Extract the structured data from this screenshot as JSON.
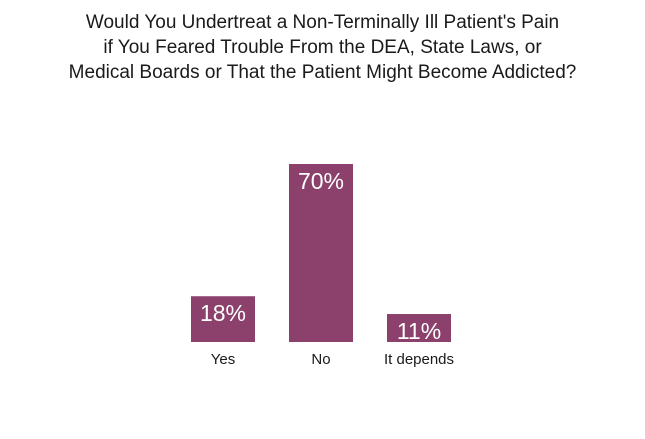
{
  "chart_data": {
    "type": "bar",
    "title_lines": [
      "Would You Undertreat a Non-Terminally Ill Patient's Pain",
      "if You Feared Trouble From the DEA, State Laws, or",
      "Medical Boards or That the Patient Might Become Addicted?"
    ],
    "categories": [
      "Yes",
      "No",
      "It depends"
    ],
    "values": [
      18,
      70,
      11
    ],
    "data_labels": [
      "18%",
      "70%",
      "11%"
    ],
    "unit": "%",
    "xlabel": "",
    "ylabel": "",
    "ylim": [
      0,
      70
    ],
    "grid": false,
    "legend": "none",
    "bar_color": "#8b416b"
  }
}
